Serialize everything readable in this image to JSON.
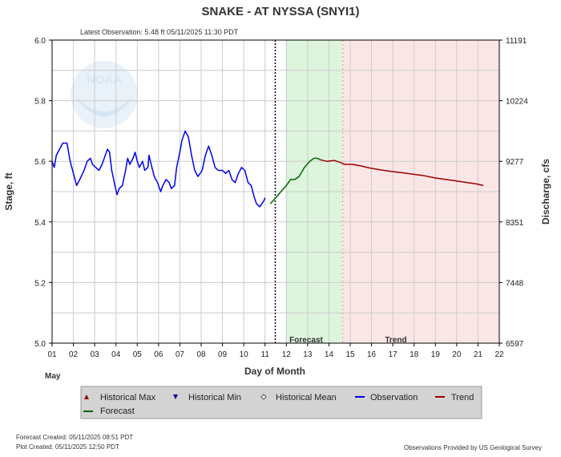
{
  "header": {
    "title": "SNAKE - AT NYSSA  (SNYI1)",
    "latest_observation": "Latest Observation: 5.48 ft 05/11/2025 11:30 PDT"
  },
  "watermark": {
    "text": "NOAA",
    "icon": "noaa-logo"
  },
  "colors": {
    "observation": "#0000ee",
    "forecast": "#006600",
    "trend": "#990000",
    "forecast_shade": "#ddf5dd",
    "trend_shade": "#fbe6e6",
    "legend_bg": "#d3d3d3",
    "grid": "#cccccc"
  },
  "chart_data": {
    "type": "line",
    "x_unit": "Day of Month (May 2025)",
    "xlabel": "Day of Month",
    "ylabel": "Stage, ft",
    "y2label": "Discharge, cfs",
    "month_label": "May",
    "xlim": [
      1,
      22
    ],
    "ylim": [
      5.0,
      6.0
    ],
    "x_ticks": [
      1,
      2,
      3,
      4,
      5,
      6,
      7,
      8,
      9,
      10,
      11,
      12,
      13,
      14,
      15,
      16,
      17,
      18,
      19,
      20,
      21,
      22
    ],
    "x_tick_labels": [
      "01",
      "02",
      "03",
      "04",
      "05",
      "06",
      "07",
      "08",
      "09",
      "10",
      "11",
      "12",
      "13",
      "14",
      "15",
      "16",
      "17",
      "18",
      "19",
      "20",
      "21",
      "22"
    ],
    "y_ticks": [
      5.0,
      5.2,
      5.4,
      5.6,
      5.8,
      6.0
    ],
    "y_tick_labels": [
      "5.0",
      "5.2",
      "5.4",
      "5.6",
      "5.8",
      "6.0"
    ],
    "y2_ticks": [
      5.0,
      5.2,
      5.4,
      5.6,
      5.8,
      6.0
    ],
    "y2_tick_labels": [
      "6597",
      "7448",
      "8351",
      "9277",
      "10224",
      "11191"
    ],
    "grid": true,
    "forecast_region": [
      12.0,
      14.65
    ],
    "trend_region": [
      14.65,
      22.0
    ],
    "forecast_region_label": "Forecast",
    "trend_region_label": "Trend",
    "current_time_x": 11.48,
    "series": [
      {
        "name": "Observation",
        "points": [
          [
            1.0,
            5.6
          ],
          [
            1.1,
            5.58
          ],
          [
            1.2,
            5.62
          ],
          [
            1.35,
            5.64
          ],
          [
            1.5,
            5.66
          ],
          [
            1.7,
            5.66
          ],
          [
            1.85,
            5.6
          ],
          [
            2.0,
            5.56
          ],
          [
            2.15,
            5.52
          ],
          [
            2.3,
            5.54
          ],
          [
            2.5,
            5.57
          ],
          [
            2.65,
            5.6
          ],
          [
            2.8,
            5.61
          ],
          [
            2.9,
            5.59
          ],
          [
            3.05,
            5.58
          ],
          [
            3.2,
            5.57
          ],
          [
            3.35,
            5.59
          ],
          [
            3.5,
            5.62
          ],
          [
            3.6,
            5.64
          ],
          [
            3.7,
            5.63
          ],
          [
            3.8,
            5.57
          ],
          [
            3.95,
            5.52
          ],
          [
            4.05,
            5.49
          ],
          [
            4.15,
            5.51
          ],
          [
            4.3,
            5.52
          ],
          [
            4.45,
            5.57
          ],
          [
            4.55,
            5.61
          ],
          [
            4.65,
            5.59
          ],
          [
            4.8,
            5.61
          ],
          [
            4.9,
            5.63
          ],
          [
            5.0,
            5.6
          ],
          [
            5.1,
            5.58
          ],
          [
            5.25,
            5.6
          ],
          [
            5.35,
            5.57
          ],
          [
            5.5,
            5.58
          ],
          [
            5.55,
            5.62
          ],
          [
            5.65,
            5.59
          ],
          [
            5.8,
            5.55
          ],
          [
            5.95,
            5.53
          ],
          [
            6.1,
            5.5
          ],
          [
            6.2,
            5.52
          ],
          [
            6.35,
            5.54
          ],
          [
            6.5,
            5.53
          ],
          [
            6.6,
            5.51
          ],
          [
            6.75,
            5.52
          ],
          [
            6.85,
            5.58
          ],
          [
            7.0,
            5.63
          ],
          [
            7.1,
            5.67
          ],
          [
            7.25,
            5.7
          ],
          [
            7.4,
            5.68
          ],
          [
            7.55,
            5.62
          ],
          [
            7.7,
            5.57
          ],
          [
            7.85,
            5.55
          ],
          [
            8.05,
            5.57
          ],
          [
            8.2,
            5.62
          ],
          [
            8.35,
            5.65
          ],
          [
            8.5,
            5.62
          ],
          [
            8.65,
            5.58
          ],
          [
            8.8,
            5.57
          ],
          [
            9.0,
            5.57
          ],
          [
            9.15,
            5.56
          ],
          [
            9.3,
            5.57
          ],
          [
            9.45,
            5.54
          ],
          [
            9.6,
            5.53
          ],
          [
            9.75,
            5.56
          ],
          [
            9.9,
            5.58
          ],
          [
            10.05,
            5.57
          ],
          [
            10.2,
            5.53
          ],
          [
            10.35,
            5.52
          ],
          [
            10.5,
            5.48
          ],
          [
            10.6,
            5.46
          ],
          [
            10.75,
            5.45
          ],
          [
            10.85,
            5.46
          ],
          [
            10.95,
            5.47
          ],
          [
            11.0,
            5.48
          ]
        ]
      },
      {
        "name": "Forecast",
        "points": [
          [
            11.25,
            5.46
          ],
          [
            11.5,
            5.48
          ],
          [
            11.75,
            5.5
          ],
          [
            12.0,
            5.52
          ],
          [
            12.2,
            5.54
          ],
          [
            12.4,
            5.54
          ],
          [
            12.6,
            5.55
          ],
          [
            12.85,
            5.58
          ],
          [
            13.1,
            5.6
          ],
          [
            13.3,
            5.61
          ],
          [
            13.45,
            5.61
          ],
          [
            13.6,
            5.605
          ]
        ]
      },
      {
        "name": "Trend",
        "points": [
          [
            13.6,
            5.605
          ],
          [
            13.9,
            5.6
          ],
          [
            14.25,
            5.603
          ],
          [
            14.5,
            5.597
          ],
          [
            14.75,
            5.59
          ],
          [
            15.1,
            5.59
          ],
          [
            15.5,
            5.585
          ],
          [
            15.9,
            5.578
          ],
          [
            16.4,
            5.572
          ],
          [
            16.9,
            5.567
          ],
          [
            17.5,
            5.562
          ],
          [
            18.0,
            5.557
          ],
          [
            18.5,
            5.552
          ],
          [
            19.0,
            5.545
          ],
          [
            19.5,
            5.54
          ],
          [
            20.0,
            5.535
          ],
          [
            20.5,
            5.53
          ],
          [
            20.95,
            5.525
          ],
          [
            21.25,
            5.52
          ]
        ]
      }
    ]
  },
  "legend": {
    "items": [
      {
        "label": "Historical Max",
        "icon": "triangle-up-icon",
        "color": "#990000"
      },
      {
        "label": "Historical Min",
        "icon": "triangle-down-icon",
        "color": "#000099"
      },
      {
        "label": "Historical Mean",
        "icon": "diamond-icon",
        "color": "#555555"
      },
      {
        "label": "Observation",
        "icon": "line-icon",
        "color": "#0000ee"
      },
      {
        "label": "Trend",
        "icon": "line-icon",
        "color": "#990000"
      },
      {
        "label": "Forecast",
        "icon": "line-icon",
        "color": "#006600"
      }
    ]
  },
  "footer": {
    "forecast_created": "Forecast Created: 05/11/2025 08:51 PDT",
    "plot_created": "Plot Created: 05/11/2025 12:50 PDT",
    "credit": "Observations Provided by US Geological Survey"
  }
}
